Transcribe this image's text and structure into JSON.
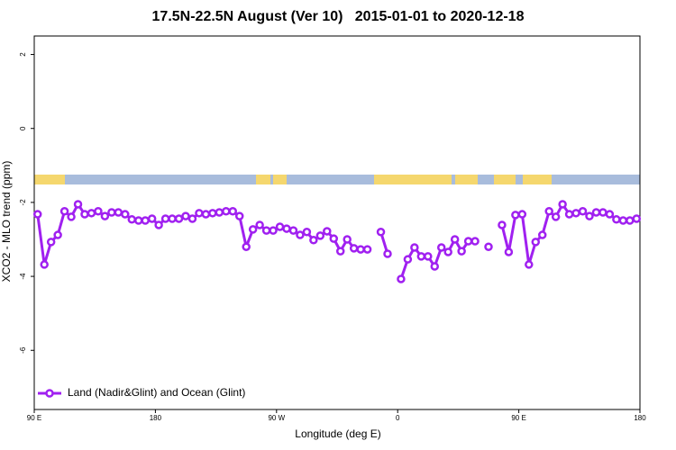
{
  "chart_data": {
    "type": "line",
    "title": "17.5N-22.5N August (Ver 10)   2015-01-01 to 2020-12-18",
    "xlabel": "Longitude (deg E)",
    "ylabel": "XCO2 - MLO trend (ppm)",
    "x": [
      92.5,
      97.5,
      102.5,
      107.5,
      112.5,
      117.5,
      122.5,
      127.5,
      132.5,
      137.5,
      142.5,
      147.5,
      152.5,
      157.5,
      162.5,
      167.5,
      172.5,
      177.5,
      182.5,
      187.5,
      192.5,
      197.5,
      202.5,
      207.5,
      212.5,
      217.5,
      222.5,
      227.5,
      232.5,
      237.5,
      242.5,
      247.5,
      252.5,
      257.5,
      262.5,
      267.5,
      272.5,
      277.5,
      282.5,
      287.5,
      292.5,
      297.5,
      302.5,
      307.5,
      312.5,
      317.5,
      322.5,
      327.5,
      332.5,
      337.5,
      342.5,
      347.5,
      352.5,
      357.5,
      362.5,
      367.5,
      372.5,
      377.5,
      382.5,
      387.5,
      392.5,
      397.5,
      402.5,
      407.5,
      412.5,
      417.5,
      422.5,
      427.5,
      432.5,
      437.5,
      442.5,
      447.5,
      452.5,
      457.5,
      462.5,
      467.5,
      472.5,
      477.5,
      482.5,
      487.5,
      492.5,
      497.5,
      502.5,
      507.5,
      512.5,
      517.5,
      522.5,
      527.5,
      532.5,
      537.5
    ],
    "series": [
      {
        "name": "Land (Nadir&Glint) and Ocean (Glint)",
        "color": "#a020f0",
        "values": [
          -2.32,
          -3.68,
          -3.07,
          -2.88,
          -2.24,
          -2.39,
          -2.05,
          -2.32,
          -2.29,
          -2.24,
          -2.37,
          -2.27,
          -2.27,
          -2.32,
          -2.46,
          -2.49,
          -2.49,
          -2.44,
          -2.61,
          -2.44,
          -2.44,
          -2.44,
          -2.37,
          -2.44,
          -2.29,
          -2.32,
          -2.29,
          -2.27,
          -2.24,
          -2.24,
          -2.37,
          -3.2,
          -2.73,
          -2.61,
          -2.76,
          -2.76,
          -2.66,
          -2.71,
          -2.76,
          -2.88,
          -2.8,
          -3.02,
          -2.9,
          -2.78,
          -2.98,
          -3.32,
          -3.0,
          -3.24,
          -3.27,
          -3.27,
          null,
          -2.8,
          -3.39,
          null,
          -4.07,
          -3.54,
          -3.22,
          -3.46,
          -3.46,
          -3.73,
          -3.22,
          -3.34,
          -3.0,
          -3.32,
          -3.05,
          -3.05,
          null,
          -3.2,
          null,
          -2.61,
          -3.34,
          -2.34,
          -2.32,
          -3.68,
          -3.07,
          -2.88,
          -2.24,
          -2.39,
          -2.05,
          -2.32,
          -2.29,
          -2.24,
          -2.37,
          -2.27,
          -2.27,
          -2.32,
          -2.46,
          -2.49,
          -2.49,
          -2.44
        ]
      }
    ],
    "xlim": [
      90,
      540
    ],
    "xticks": [
      {
        "value": 90,
        "label": "90 E"
      },
      180,
      {
        "value": 270,
        "label": "90 W"
      },
      {
        "value": 360,
        "label": "0"
      },
      {
        "value": 450,
        "label": "90 E"
      },
      {
        "value": 540,
        "label": "180"
      }
    ],
    "ylim": [
      -7.6,
      2.5
    ],
    "yticks": [
      -6,
      -4,
      -2,
      0,
      2
    ],
    "legend": "bottom-left"
  }
}
